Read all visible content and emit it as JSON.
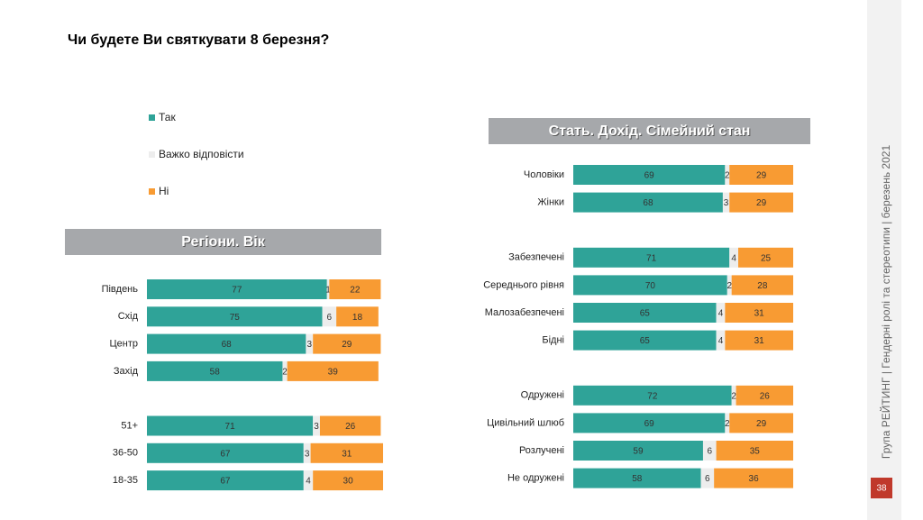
{
  "title": "Чи будете Ви святкувати 8 березня?",
  "sidebar": "Група РЕЙТИНГ | Гендерні ролі та стереотипи | березень 2021",
  "page_number": "38",
  "chart_data": [
    {
      "type": "stacked-bar",
      "title": "Регіони. Вік",
      "categories": [
        "Південь",
        "Схід",
        "Центр",
        "Захід",
        null,
        "51+",
        "36-50",
        "18-35"
      ],
      "series": [
        {
          "name": "Так",
          "color": "#2fa398",
          "values": [
            77,
            75,
            68,
            58,
            null,
            71,
            67,
            67
          ]
        },
        {
          "name": "Важко відповісти",
          "color": "#ededed",
          "values": [
            1,
            6,
            3,
            2,
            null,
            3,
            3,
            4
          ]
        },
        {
          "name": "Ні",
          "color": "#f89b33",
          "values": [
            22,
            18,
            29,
            39,
            null,
            26,
            31,
            30
          ]
        }
      ]
    },
    {
      "type": "stacked-bar",
      "title": "Стать. Дохід. Сімейний стан",
      "categories": [
        "Чоловіки",
        "Жінки",
        null,
        "Забезпечені",
        "Середнього рівня",
        "Малозабезпечені",
        "Бідні",
        null,
        "Одружені",
        "Цивільний шлюб",
        "Розлучені",
        "Не одружені"
      ],
      "series": [
        {
          "color": "#2fa398",
          "values": [
            69,
            68,
            null,
            71,
            70,
            65,
            65,
            null,
            72,
            69,
            59,
            58
          ]
        },
        {
          "color": "#ededed",
          "values": [
            2,
            3,
            null,
            4,
            2,
            4,
            4,
            null,
            2,
            2,
            6,
            6
          ]
        },
        {
          "color": "#f89b33",
          "values": [
            29,
            29,
            null,
            25,
            28,
            31,
            31,
            null,
            26,
            29,
            35,
            36
          ]
        }
      ]
    }
  ]
}
